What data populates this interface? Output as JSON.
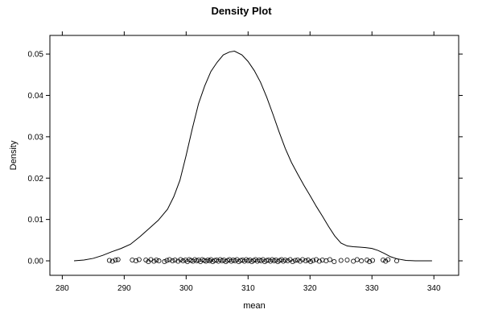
{
  "chart_data": {
    "type": "line",
    "title": "Density Plot",
    "xlabel": "mean",
    "ylabel": "Density",
    "xlim": [
      278,
      344
    ],
    "ylim": [
      -0.0035,
      0.0545
    ],
    "x_ticks": [
      280,
      290,
      300,
      310,
      320,
      330,
      340
    ],
    "y_ticks": [
      0.0,
      0.01,
      0.02,
      0.03,
      0.04,
      0.05
    ],
    "x_tick_labels": [
      "280",
      "290",
      "300",
      "310",
      "320",
      "330",
      "340"
    ],
    "y_tick_labels": [
      "0.00",
      "0.01",
      "0.02",
      "0.03",
      "0.04",
      "0.05"
    ],
    "grid": false,
    "legend": "none",
    "line_color": "#000000",
    "series": [
      {
        "values_xy": [
          [
            281.9,
            0.0
          ],
          [
            283.5,
            0.0002
          ],
          [
            285.0,
            0.0006
          ],
          [
            286.5,
            0.0013
          ],
          [
            288.0,
            0.0022
          ],
          [
            289.5,
            0.003
          ],
          [
            291.0,
            0.004
          ],
          [
            292.5,
            0.0058
          ],
          [
            294.0,
            0.0078
          ],
          [
            295.5,
            0.0098
          ],
          [
            297.0,
            0.0125
          ],
          [
            298.0,
            0.0155
          ],
          [
            299.0,
            0.0195
          ],
          [
            300.0,
            0.0255
          ],
          [
            301.0,
            0.032
          ],
          [
            302.0,
            0.038
          ],
          [
            303.0,
            0.0423
          ],
          [
            304.0,
            0.0458
          ],
          [
            305.0,
            0.048
          ],
          [
            306.0,
            0.0498
          ],
          [
            307.0,
            0.0505
          ],
          [
            307.8,
            0.0507
          ],
          [
            309.0,
            0.0498
          ],
          [
            310.0,
            0.0482
          ],
          [
            311.0,
            0.046
          ],
          [
            312.0,
            0.0432
          ],
          [
            313.0,
            0.0396
          ],
          [
            314.0,
            0.0355
          ],
          [
            315.0,
            0.0312
          ],
          [
            316.0,
            0.0272
          ],
          [
            317.0,
            0.0238
          ],
          [
            318.0,
            0.021
          ],
          [
            319.0,
            0.0183
          ],
          [
            320.0,
            0.0158
          ],
          [
            321.0,
            0.0132
          ],
          [
            322.0,
            0.0108
          ],
          [
            323.0,
            0.0083
          ],
          [
            324.0,
            0.006
          ],
          [
            325.0,
            0.0043
          ],
          [
            326.0,
            0.0036
          ],
          [
            327.0,
            0.0034
          ],
          [
            328.0,
            0.0033
          ],
          [
            329.0,
            0.0032
          ],
          [
            330.0,
            0.003
          ],
          [
            331.0,
            0.0025
          ],
          [
            332.0,
            0.0018
          ],
          [
            333.0,
            0.001
          ],
          [
            334.0,
            0.0005
          ],
          [
            335.5,
            0.0001
          ],
          [
            337.0,
            0.0
          ],
          [
            339.7,
            0.0
          ]
        ]
      }
    ],
    "rug_points_y": 0.0,
    "rug_points_x": [
      287.6,
      288.1,
      288.6,
      289.0,
      291.3,
      291.9,
      292.4,
      293.5,
      293.9,
      294.3,
      294.8,
      295.2,
      295.6,
      296.5,
      296.9,
      297.3,
      297.8,
      298.2,
      298.7,
      299.1,
      299.5,
      299.9,
      300.2,
      300.5,
      300.8,
      301.1,
      301.4,
      301.7,
      302.0,
      302.3,
      302.6,
      302.9,
      303.2,
      303.5,
      303.8,
      304.0,
      304.3,
      304.6,
      304.9,
      305.2,
      305.5,
      305.8,
      306.1,
      306.4,
      306.7,
      307.0,
      307.3,
      307.6,
      307.9,
      308.2,
      308.5,
      308.8,
      309.1,
      309.4,
      309.7,
      310.0,
      310.3,
      310.6,
      310.9,
      311.2,
      311.5,
      311.8,
      312.1,
      312.4,
      312.7,
      313.0,
      313.3,
      313.6,
      313.9,
      314.2,
      314.5,
      314.8,
      315.1,
      315.4,
      315.7,
      316.0,
      316.4,
      316.8,
      317.2,
      317.6,
      318.0,
      318.4,
      318.8,
      319.3,
      319.7,
      320.1,
      320.5,
      321.0,
      321.5,
      322.0,
      322.6,
      323.2,
      323.9,
      325.0,
      326.0,
      327.0,
      327.6,
      328.3,
      329.2,
      329.6,
      330.1,
      331.8,
      332.2,
      332.6,
      334.0
    ],
    "rug_points_jitter": [
      0.0001,
      -0.0001,
      0.0002,
      0.0003,
      0.0002,
      0.0,
      0.0003,
      0.0002,
      -0.0002,
      0.0003,
      -0.0001,
      0.0002,
      0.0,
      -0.0002,
      0.0001,
      0.0003,
      0.0,
      0.0002,
      -0.0001,
      0.0003,
      0.0,
      0.0002,
      -0.0002,
      0.0003,
      0.0001,
      -0.0001,
      0.0003,
      0.0,
      0.0002,
      -0.0002,
      0.0003,
      0.0001,
      -0.0001,
      0.0002,
      0.0,
      0.0003,
      -0.0002,
      0.0001,
      0.0002,
      -0.0001,
      0.0003,
      0.0,
      0.0002,
      -0.0002,
      0.0001,
      0.0003,
      -0.0001,
      0.0002,
      0.0,
      0.0003,
      -0.0002,
      0.0001,
      0.0002,
      -0.0001,
      0.0003,
      0.0,
      0.0002,
      -0.0002,
      0.0001,
      0.0003,
      -0.0001,
      0.0002,
      0.0,
      0.0003,
      -0.0002,
      0.0001,
      0.0002,
      -0.0001,
      0.0003,
      0.0,
      0.0002,
      -0.0002,
      0.0001,
      0.0003,
      -0.0001,
      0.0002,
      0.0,
      0.0003,
      -0.0002,
      0.0001,
      0.0002,
      -0.0001,
      0.0003,
      0.0,
      0.0002,
      -0.0002,
      0.0001,
      0.0003,
      -0.0001,
      0.0002,
      0.0,
      0.0003,
      -0.0002,
      0.0001,
      0.0002,
      -0.0001,
      0.0003,
      0.0,
      0.0002,
      -0.0002,
      0.0001,
      0.0002,
      -0.0001,
      0.0003,
      0.0
    ]
  }
}
